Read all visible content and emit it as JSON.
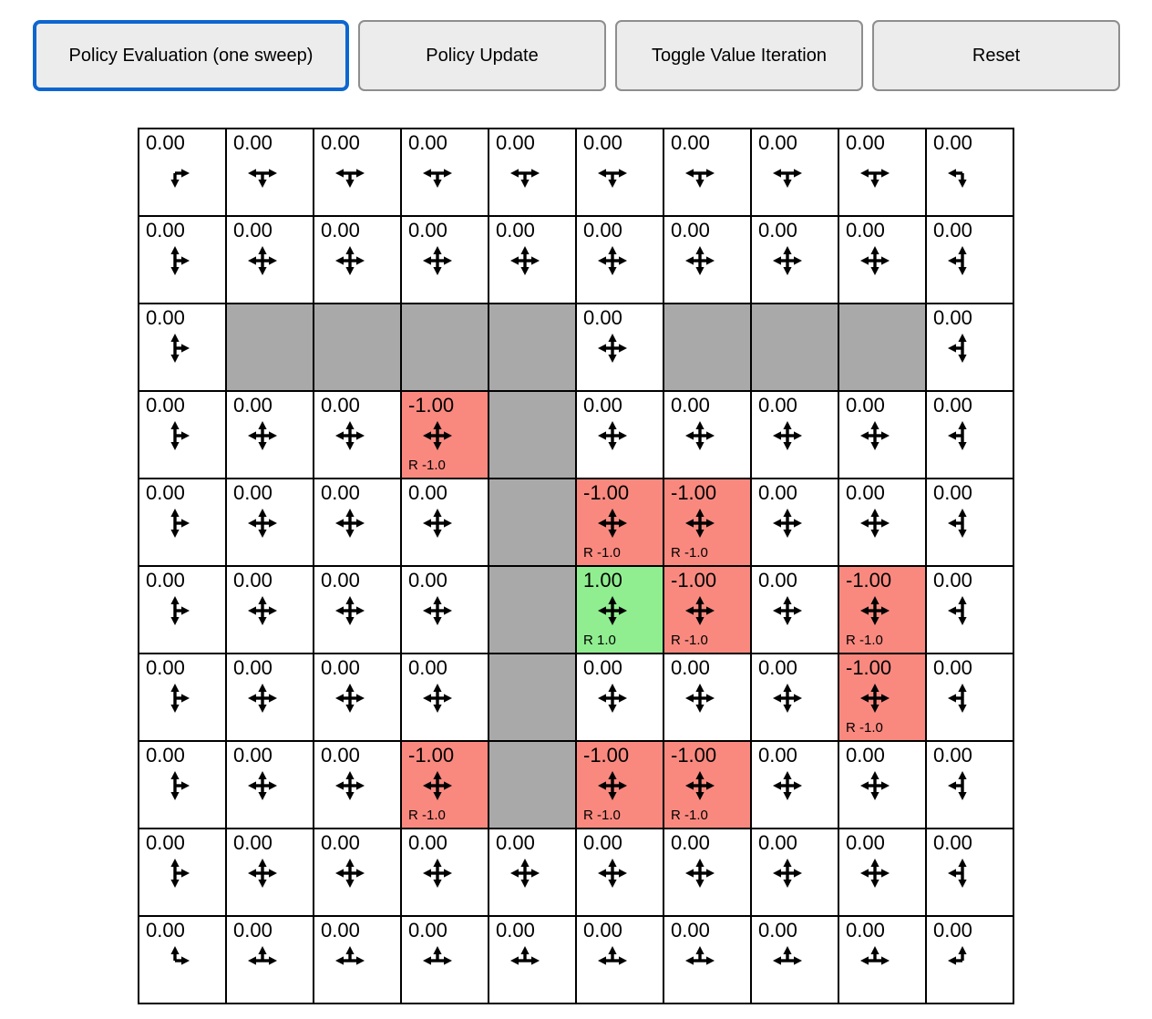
{
  "toolbar": {
    "buttons": [
      {
        "label": "Policy Evaluation (one sweep)",
        "active": true
      },
      {
        "label": "Policy Update",
        "active": false
      },
      {
        "label": "Toggle Value Iteration",
        "active": false
      },
      {
        "label": "Reset",
        "active": false
      }
    ]
  },
  "colors": {
    "wall": "#a9a9a9",
    "negative": "#f9897f",
    "positive": "#90ee90",
    "active_border": "#0d66d0",
    "grid_line": "#000000",
    "button_bg": "#ececec",
    "button_border": "#8e8e8e"
  },
  "grid": {
    "rows": 10,
    "cols": 10,
    "cell_size": 96,
    "cells": [
      [
        {
          "value": "0.00",
          "arrows": [
            "right",
            "down"
          ]
        },
        {
          "value": "0.00",
          "arrows": [
            "left",
            "right",
            "down"
          ]
        },
        {
          "value": "0.00",
          "arrows": [
            "left",
            "right",
            "down"
          ]
        },
        {
          "value": "0.00",
          "arrows": [
            "left",
            "right",
            "down"
          ]
        },
        {
          "value": "0.00",
          "arrows": [
            "left",
            "right",
            "down"
          ]
        },
        {
          "value": "0.00",
          "arrows": [
            "left",
            "right",
            "down"
          ]
        },
        {
          "value": "0.00",
          "arrows": [
            "left",
            "right",
            "down"
          ]
        },
        {
          "value": "0.00",
          "arrows": [
            "left",
            "right",
            "down"
          ]
        },
        {
          "value": "0.00",
          "arrows": [
            "left",
            "right",
            "down"
          ]
        },
        {
          "value": "0.00",
          "arrows": [
            "left",
            "down"
          ]
        }
      ],
      [
        {
          "value": "0.00",
          "arrows": [
            "up",
            "down",
            "right"
          ]
        },
        {
          "value": "0.00",
          "arrows": [
            "up",
            "down",
            "left",
            "right"
          ]
        },
        {
          "value": "0.00",
          "arrows": [
            "up",
            "down",
            "left",
            "right"
          ]
        },
        {
          "value": "0.00",
          "arrows": [
            "up",
            "down",
            "left",
            "right"
          ]
        },
        {
          "value": "0.00",
          "arrows": [
            "up",
            "down",
            "left",
            "right"
          ]
        },
        {
          "value": "0.00",
          "arrows": [
            "up",
            "down",
            "left",
            "right"
          ]
        },
        {
          "value": "0.00",
          "arrows": [
            "up",
            "down",
            "left",
            "right"
          ]
        },
        {
          "value": "0.00",
          "arrows": [
            "up",
            "down",
            "left",
            "right"
          ]
        },
        {
          "value": "0.00",
          "arrows": [
            "up",
            "down",
            "left",
            "right"
          ]
        },
        {
          "value": "0.00",
          "arrows": [
            "up",
            "down",
            "left"
          ]
        }
      ],
      [
        {
          "value": "0.00",
          "arrows": [
            "up",
            "down",
            "right"
          ]
        },
        {
          "type": "wall"
        },
        {
          "type": "wall"
        },
        {
          "type": "wall"
        },
        {
          "type": "wall"
        },
        {
          "value": "0.00",
          "arrows": [
            "up",
            "down",
            "left",
            "right"
          ]
        },
        {
          "type": "wall"
        },
        {
          "type": "wall"
        },
        {
          "type": "wall"
        },
        {
          "value": "0.00",
          "arrows": [
            "up",
            "down",
            "left"
          ]
        }
      ],
      [
        {
          "value": "0.00",
          "arrows": [
            "up",
            "down",
            "right"
          ]
        },
        {
          "value": "0.00",
          "arrows": [
            "up",
            "down",
            "left",
            "right"
          ]
        },
        {
          "value": "0.00",
          "arrows": [
            "up",
            "down",
            "left",
            "right"
          ]
        },
        {
          "value": "-1.00",
          "arrows": [
            "up",
            "down",
            "left",
            "right"
          ],
          "bg": "negative",
          "reward": "R -1.0"
        },
        {
          "type": "wall"
        },
        {
          "value": "0.00",
          "arrows": [
            "up",
            "down",
            "left",
            "right"
          ]
        },
        {
          "value": "0.00",
          "arrows": [
            "up",
            "down",
            "left",
            "right"
          ]
        },
        {
          "value": "0.00",
          "arrows": [
            "up",
            "down",
            "left",
            "right"
          ]
        },
        {
          "value": "0.00",
          "arrows": [
            "up",
            "down",
            "left",
            "right"
          ]
        },
        {
          "value": "0.00",
          "arrows": [
            "up",
            "down",
            "left"
          ]
        }
      ],
      [
        {
          "value": "0.00",
          "arrows": [
            "up",
            "down",
            "right"
          ]
        },
        {
          "value": "0.00",
          "arrows": [
            "up",
            "down",
            "left",
            "right"
          ]
        },
        {
          "value": "0.00",
          "arrows": [
            "up",
            "down",
            "left",
            "right"
          ]
        },
        {
          "value": "0.00",
          "arrows": [
            "up",
            "down",
            "left",
            "right"
          ]
        },
        {
          "type": "wall"
        },
        {
          "value": "-1.00",
          "arrows": [
            "up",
            "down",
            "left",
            "right"
          ],
          "bg": "negative",
          "reward": "R -1.0"
        },
        {
          "value": "-1.00",
          "arrows": [
            "up",
            "down",
            "left",
            "right"
          ],
          "bg": "negative",
          "reward": "R -1.0"
        },
        {
          "value": "0.00",
          "arrows": [
            "up",
            "down",
            "left",
            "right"
          ]
        },
        {
          "value": "0.00",
          "arrows": [
            "up",
            "down",
            "left",
            "right"
          ]
        },
        {
          "value": "0.00",
          "arrows": [
            "up",
            "down",
            "left"
          ]
        }
      ],
      [
        {
          "value": "0.00",
          "arrows": [
            "up",
            "down",
            "right"
          ]
        },
        {
          "value": "0.00",
          "arrows": [
            "up",
            "down",
            "left",
            "right"
          ]
        },
        {
          "value": "0.00",
          "arrows": [
            "up",
            "down",
            "left",
            "right"
          ]
        },
        {
          "value": "0.00",
          "arrows": [
            "up",
            "down",
            "left",
            "right"
          ]
        },
        {
          "type": "wall"
        },
        {
          "value": "1.00",
          "arrows": [
            "up",
            "down",
            "left",
            "right"
          ],
          "bg": "positive",
          "reward": "R 1.0"
        },
        {
          "value": "-1.00",
          "arrows": [
            "up",
            "down",
            "left",
            "right"
          ],
          "bg": "negative",
          "reward": "R -1.0"
        },
        {
          "value": "0.00",
          "arrows": [
            "up",
            "down",
            "left",
            "right"
          ]
        },
        {
          "value": "-1.00",
          "arrows": [
            "up",
            "down",
            "left",
            "right"
          ],
          "bg": "negative",
          "reward": "R -1.0"
        },
        {
          "value": "0.00",
          "arrows": [
            "up",
            "down",
            "left"
          ]
        }
      ],
      [
        {
          "value": "0.00",
          "arrows": [
            "up",
            "down",
            "right"
          ]
        },
        {
          "value": "0.00",
          "arrows": [
            "up",
            "down",
            "left",
            "right"
          ]
        },
        {
          "value": "0.00",
          "arrows": [
            "up",
            "down",
            "left",
            "right"
          ]
        },
        {
          "value": "0.00",
          "arrows": [
            "up",
            "down",
            "left",
            "right"
          ]
        },
        {
          "type": "wall"
        },
        {
          "value": "0.00",
          "arrows": [
            "up",
            "down",
            "left",
            "right"
          ]
        },
        {
          "value": "0.00",
          "arrows": [
            "up",
            "down",
            "left",
            "right"
          ]
        },
        {
          "value": "0.00",
          "arrows": [
            "up",
            "down",
            "left",
            "right"
          ]
        },
        {
          "value": "-1.00",
          "arrows": [
            "up",
            "down",
            "left",
            "right"
          ],
          "bg": "negative",
          "reward": "R -1.0"
        },
        {
          "value": "0.00",
          "arrows": [
            "up",
            "down",
            "left"
          ]
        }
      ],
      [
        {
          "value": "0.00",
          "arrows": [
            "up",
            "down",
            "right"
          ]
        },
        {
          "value": "0.00",
          "arrows": [
            "up",
            "down",
            "left",
            "right"
          ]
        },
        {
          "value": "0.00",
          "arrows": [
            "up",
            "down",
            "left",
            "right"
          ]
        },
        {
          "value": "-1.00",
          "arrows": [
            "up",
            "down",
            "left",
            "right"
          ],
          "bg": "negative",
          "reward": "R -1.0"
        },
        {
          "type": "wall"
        },
        {
          "value": "-1.00",
          "arrows": [
            "up",
            "down",
            "left",
            "right"
          ],
          "bg": "negative",
          "reward": "R -1.0"
        },
        {
          "value": "-1.00",
          "arrows": [
            "up",
            "down",
            "left",
            "right"
          ],
          "bg": "negative",
          "reward": "R -1.0"
        },
        {
          "value": "0.00",
          "arrows": [
            "up",
            "down",
            "left",
            "right"
          ]
        },
        {
          "value": "0.00",
          "arrows": [
            "up",
            "down",
            "left",
            "right"
          ]
        },
        {
          "value": "0.00",
          "arrows": [
            "up",
            "down",
            "left"
          ]
        }
      ],
      [
        {
          "value": "0.00",
          "arrows": [
            "up",
            "down",
            "right"
          ]
        },
        {
          "value": "0.00",
          "arrows": [
            "up",
            "down",
            "left",
            "right"
          ]
        },
        {
          "value": "0.00",
          "arrows": [
            "up",
            "down",
            "left",
            "right"
          ]
        },
        {
          "value": "0.00",
          "arrows": [
            "up",
            "down",
            "left",
            "right"
          ]
        },
        {
          "value": "0.00",
          "arrows": [
            "up",
            "down",
            "left",
            "right"
          ]
        },
        {
          "value": "0.00",
          "arrows": [
            "up",
            "down",
            "left",
            "right"
          ]
        },
        {
          "value": "0.00",
          "arrows": [
            "up",
            "down",
            "left",
            "right"
          ]
        },
        {
          "value": "0.00",
          "arrows": [
            "up",
            "down",
            "left",
            "right"
          ]
        },
        {
          "value": "0.00",
          "arrows": [
            "up",
            "down",
            "left",
            "right"
          ]
        },
        {
          "value": "0.00",
          "arrows": [
            "up",
            "down",
            "left"
          ]
        }
      ],
      [
        {
          "value": "0.00",
          "arrows": [
            "up",
            "right"
          ]
        },
        {
          "value": "0.00",
          "arrows": [
            "up",
            "left",
            "right"
          ]
        },
        {
          "value": "0.00",
          "arrows": [
            "up",
            "left",
            "right"
          ]
        },
        {
          "value": "0.00",
          "arrows": [
            "up",
            "left",
            "right"
          ]
        },
        {
          "value": "0.00",
          "arrows": [
            "up",
            "left",
            "right"
          ]
        },
        {
          "value": "0.00",
          "arrows": [
            "up",
            "left",
            "right"
          ]
        },
        {
          "value": "0.00",
          "arrows": [
            "up",
            "left",
            "right"
          ]
        },
        {
          "value": "0.00",
          "arrows": [
            "up",
            "left",
            "right"
          ]
        },
        {
          "value": "0.00",
          "arrows": [
            "up",
            "left",
            "right"
          ]
        },
        {
          "value": "0.00",
          "arrows": [
            "up",
            "left"
          ]
        }
      ]
    ]
  }
}
